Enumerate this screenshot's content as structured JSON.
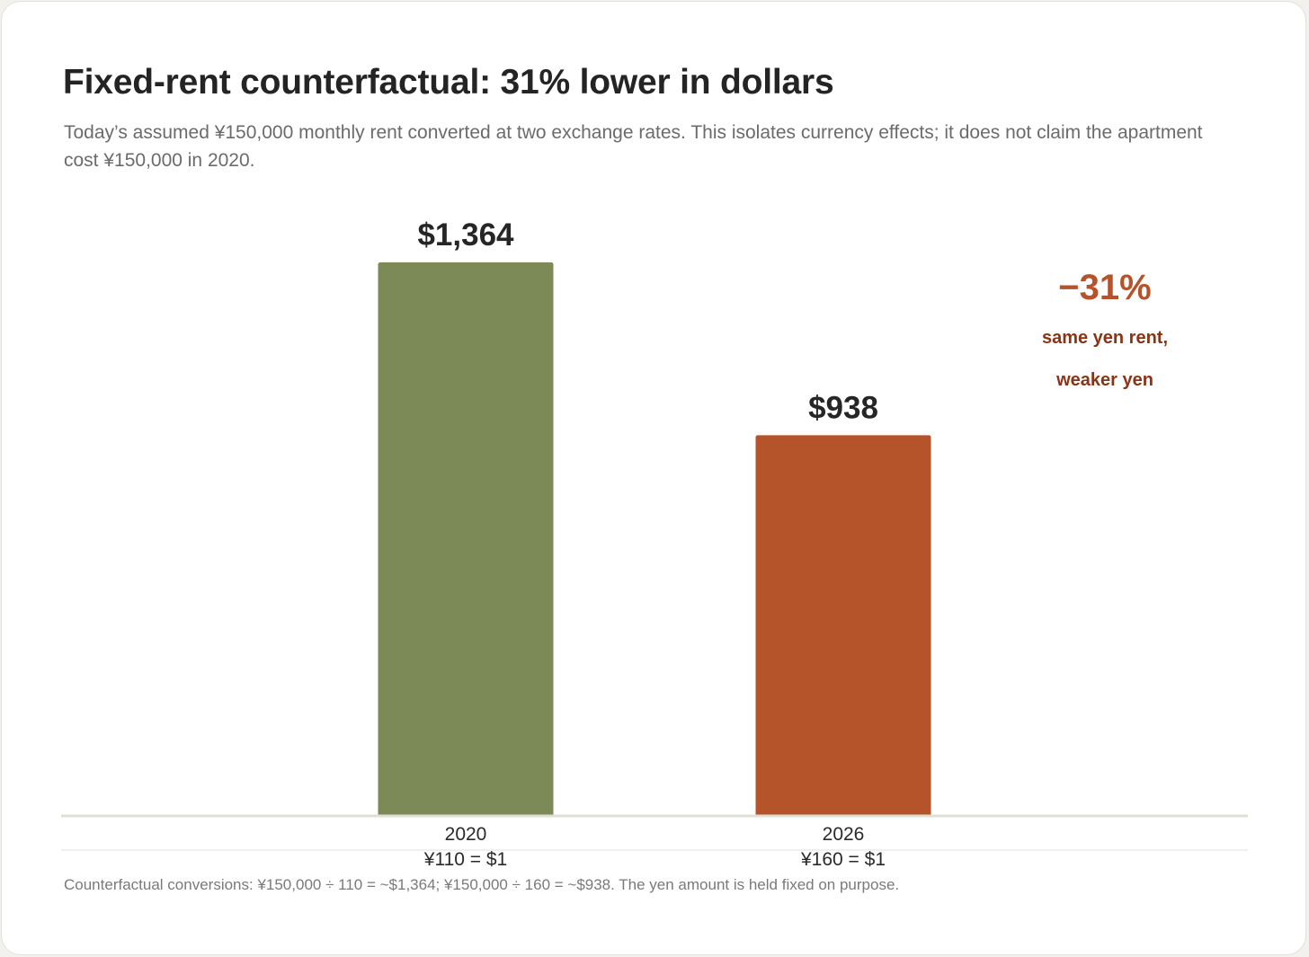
{
  "header": {
    "title": "Fixed-rent counterfactual: 31% lower in dollars",
    "subtitle": "Today’s assumed ¥150,000 monthly rent converted at two exchange rates. This isolates currency effects; it does not claim the apartment cost ¥150,000 in 2020."
  },
  "chart_data": {
    "type": "bar",
    "title": "Fixed-rent counterfactual: 31% lower in dollars",
    "subtitle": "Today’s assumed ¥150,000 monthly rent converted at two exchange rates. This isolates currency effects; it does not claim the apartment cost ¥150,000 in 2020.",
    "categories": [
      "2020",
      "2026"
    ],
    "category_sublabels": [
      "¥110 = $1",
      "¥160 = $1"
    ],
    "values": [
      1364,
      938
    ],
    "value_labels": [
      "$1,364",
      "$938"
    ],
    "colors": [
      "#7c8a58",
      "#b5542b"
    ],
    "ylim": [
      0,
      1364
    ],
    "xlabel": "",
    "ylabel": "",
    "grid": false,
    "legend": null,
    "annotation": {
      "value": "−31%",
      "lines": [
        "same yen rent,",
        "weaker yen"
      ],
      "placement": "top-right"
    }
  },
  "footnote": "Counterfactual conversions: ¥150,000 ÷ 110 = ~$1,364; ¥150,000 ÷ 160 = ~$938. The yen amount is held fixed on purpose.",
  "colors": {
    "bar_2020": "#7c8a58",
    "bar_2026": "#b5542b",
    "annotation_big": "#b5532b",
    "annotation_small": "#8a3417",
    "axis": "#e0dfd6"
  }
}
